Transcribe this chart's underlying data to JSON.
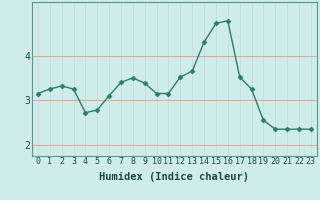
{
  "x": [
    0,
    1,
    2,
    3,
    4,
    5,
    6,
    7,
    8,
    9,
    10,
    11,
    12,
    13,
    14,
    15,
    16,
    17,
    18,
    19,
    20,
    21,
    22,
    23
  ],
  "y": [
    3.15,
    3.25,
    3.32,
    3.25,
    2.72,
    2.78,
    3.1,
    3.4,
    3.5,
    3.38,
    3.15,
    3.15,
    3.52,
    3.65,
    4.3,
    4.72,
    4.78,
    3.52,
    3.25,
    2.55,
    2.35,
    2.35,
    2.35,
    2.35
  ],
  "line_color": "#2d7d6e",
  "marker": "D",
  "marker_size": 2.5,
  "bg_color": "#ceecea",
  "grid_color_h": "#e8a0a0",
  "grid_color_v": "#c8dede",
  "axis_label": "Humidex (Indice chaleur)",
  "yticks": [
    2,
    3,
    4
  ],
  "ylim": [
    1.75,
    5.2
  ],
  "xlim": [
    -0.5,
    23.5
  ],
  "tick_fontsize": 6.0,
  "label_fontsize": 7.5
}
